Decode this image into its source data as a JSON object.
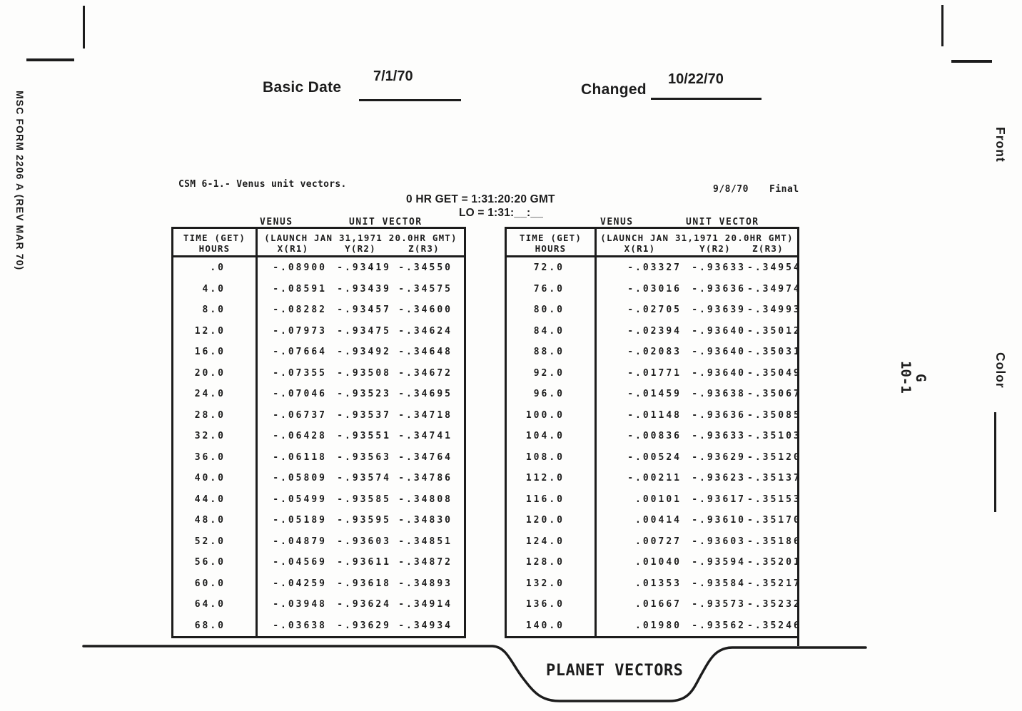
{
  "header": {
    "basic_date_label": "Basic Date",
    "basic_date_value": "7/1/70",
    "changed_label": "Changed",
    "changed_value": "10/22/70"
  },
  "margins": {
    "left_form_number": "MSC FORM 2206 A (REV MAR 70)",
    "front_label": "Front",
    "color_label": "Color",
    "page_code_line1": "G",
    "page_code_line2": "10-1"
  },
  "figure": {
    "title": "CSM 6-1.- Venus unit vectors.",
    "date": "9/8/70",
    "status": "Final",
    "get_line": "0 HR GET = 1:31:20:20 GMT",
    "lo_line": "LO = 1:31:__:__"
  },
  "table_headers": {
    "group_left": "VENUS",
    "group_right": "UNIT VECTOR",
    "time_line1": "TIME (GET)",
    "time_line2": "HOURS",
    "launch_line": "(LAUNCH JAN 31,1971 20.0HR GMT)",
    "x": "X(R1)",
    "y": "Y(R2)",
    "z": "Z(R3)"
  },
  "tab_label": "PLANET VECTORS",
  "left_table_rows": [
    {
      "t": ".0",
      "x": "-.08900",
      "y": "-.93419",
      "z": "-.34550"
    },
    {
      "t": "4.0",
      "x": "-.08591",
      "y": "-.93439",
      "z": "-.34575"
    },
    {
      "t": "8.0",
      "x": "-.08282",
      "y": "-.93457",
      "z": "-.34600"
    },
    {
      "t": "12.0",
      "x": "-.07973",
      "y": "-.93475",
      "z": "-.34624"
    },
    {
      "t": "16.0",
      "x": "-.07664",
      "y": "-.93492",
      "z": "-.34648"
    },
    {
      "t": "20.0",
      "x": "-.07355",
      "y": "-.93508",
      "z": "-.34672"
    },
    {
      "t": "24.0",
      "x": "-.07046",
      "y": "-.93523",
      "z": "-.34695"
    },
    {
      "t": "28.0",
      "x": "-.06737",
      "y": "-.93537",
      "z": "-.34718"
    },
    {
      "t": "32.0",
      "x": "-.06428",
      "y": "-.93551",
      "z": "-.34741"
    },
    {
      "t": "36.0",
      "x": "-.06118",
      "y": "-.93563",
      "z": "-.34764"
    },
    {
      "t": "40.0",
      "x": "-.05809",
      "y": "-.93574",
      "z": "-.34786"
    },
    {
      "t": "44.0",
      "x": "-.05499",
      "y": "-.93585",
      "z": "-.34808"
    },
    {
      "t": "48.0",
      "x": "-.05189",
      "y": "-.93595",
      "z": "-.34830"
    },
    {
      "t": "52.0",
      "x": "-.04879",
      "y": "-.93603",
      "z": "-.34851"
    },
    {
      "t": "56.0",
      "x": "-.04569",
      "y": "-.93611",
      "z": "-.34872"
    },
    {
      "t": "60.0",
      "x": "-.04259",
      "y": "-.93618",
      "z": "-.34893"
    },
    {
      "t": "64.0",
      "x": "-.03948",
      "y": "-.93624",
      "z": "-.34914"
    },
    {
      "t": "68.0",
      "x": "-.03638",
      "y": "-.93629",
      "z": "-.34934"
    }
  ],
  "right_table_rows": [
    {
      "t": "72.0",
      "x": "-.03327",
      "y": "-.93633",
      "z": "-.34954"
    },
    {
      "t": "76.0",
      "x": "-.03016",
      "y": "-.93636",
      "z": "-.34974"
    },
    {
      "t": "80.0",
      "x": "-.02705",
      "y": "-.93639",
      "z": "-.34993"
    },
    {
      "t": "84.0",
      "x": "-.02394",
      "y": "-.93640",
      "z": "-.35012"
    },
    {
      "t": "88.0",
      "x": "-.02083",
      "y": "-.93640",
      "z": "-.35031"
    },
    {
      "t": "92.0",
      "x": "-.01771",
      "y": "-.93640",
      "z": "-.35049"
    },
    {
      "t": "96.0",
      "x": "-.01459",
      "y": "-.93638",
      "z": "-.35067"
    },
    {
      "t": "100.0",
      "x": "-.01148",
      "y": "-.93636",
      "z": "-.35085"
    },
    {
      "t": "104.0",
      "x": "-.00836",
      "y": "-.93633",
      "z": "-.35103"
    },
    {
      "t": "108.0",
      "x": "-.00524",
      "y": "-.93629",
      "z": "-.35120"
    },
    {
      "t": "112.0",
      "x": "-.00211",
      "y": "-.93623",
      "z": "-.35137"
    },
    {
      "t": "116.0",
      "x": ".00101",
      "y": "-.93617",
      "z": "-.35153"
    },
    {
      "t": "120.0",
      "x": ".00414",
      "y": "-.93610",
      "z": "-.35170"
    },
    {
      "t": "124.0",
      "x": ".00727",
      "y": "-.93603",
      "z": "-.35186"
    },
    {
      "t": "128.0",
      "x": ".01040",
      "y": "-.93594",
      "z": "-.35201"
    },
    {
      "t": "132.0",
      "x": ".01353",
      "y": "-.93584",
      "z": "-.35217"
    },
    {
      "t": "136.0",
      "x": ".01667",
      "y": "-.93573",
      "z": "-.35232"
    },
    {
      "t": "140.0",
      "x": ".01980",
      "y": "-.93562",
      "z": "-.35246"
    }
  ]
}
